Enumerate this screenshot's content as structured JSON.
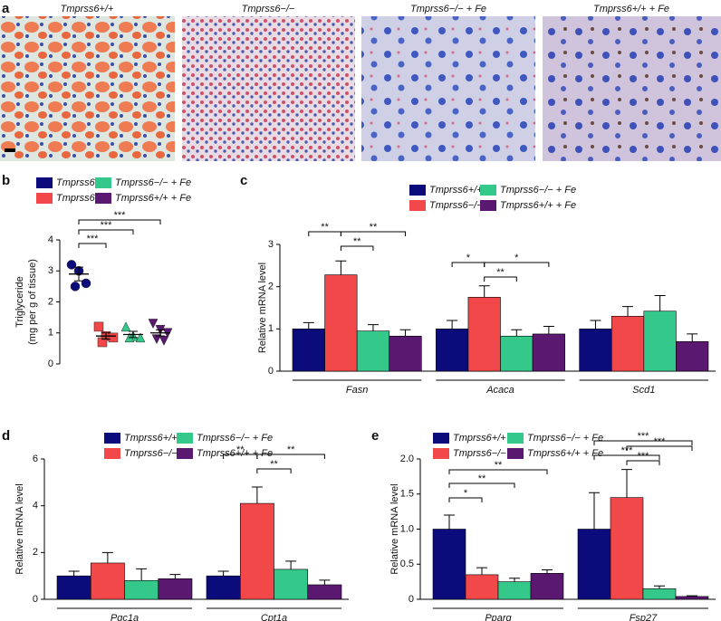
{
  "panel_a": {
    "letter": "a",
    "labels": [
      "Tmprss6+/+",
      "Tmprss6−/−",
      "Tmprss6−/− + Fe",
      "Tmprss6+/+ + Fe"
    ]
  },
  "chart_data": [
    {
      "type": "scatter",
      "letter": "b",
      "ylabel": [
        "Triglyceride",
        "(mg per g of tissue)"
      ],
      "ylim": [
        0,
        4
      ],
      "yticks": [
        0,
        1,
        2,
        3,
        4
      ],
      "series": [
        {
          "name": "Tmprss6+/+",
          "color": "#0b0b7c",
          "marker": "circle",
          "values": [
            3.2,
            3.0,
            2.6,
            2.5
          ],
          "mean": 2.9,
          "sem": 0.22
        },
        {
          "name": "Tmprss6−/−",
          "color": "#f2484a",
          "marker": "square",
          "values": [
            1.2,
            0.9,
            0.85,
            0.7
          ],
          "mean": 0.9,
          "sem": 0.1
        },
        {
          "name": "Tmprss6−/− + Fe",
          "color": "#34c98a",
          "marker": "triangle",
          "values": [
            1.2,
            0.9,
            0.85,
            0.85
          ],
          "mean": 0.95,
          "sem": 0.1
        },
        {
          "name": "Tmprss6+/+ + Fe",
          "color": "#5b1870",
          "marker": "triangle-down",
          "values": [
            1.3,
            1.1,
            1.0,
            0.8,
            0.75
          ],
          "mean": 1.0,
          "sem": 0.1
        }
      ],
      "annotations": [
        "***",
        "***",
        "***"
      ]
    },
    {
      "type": "bar",
      "letter": "c",
      "ylabel": "Relative mRNA level",
      "categories": [
        "Fasn",
        "Acaca",
        "Scd1"
      ],
      "ylim": [
        0,
        3
      ],
      "yticks": [
        0,
        1,
        2,
        3
      ],
      "series": [
        {
          "name": "Tmprss6+/+",
          "color": "#0b0b7c",
          "values": [
            1.0,
            1.0,
            1.0
          ],
          "errors": [
            0.15,
            0.2,
            0.2
          ]
        },
        {
          "name": "Tmprss6−/−",
          "color": "#f2484a",
          "values": [
            2.28,
            1.75,
            1.3
          ],
          "errors": [
            0.33,
            0.27,
            0.23
          ]
        },
        {
          "name": "Tmprss6−/− + Fe",
          "color": "#34c98a",
          "values": [
            0.95,
            0.83,
            1.42
          ],
          "errors": [
            0.15,
            0.15,
            0.37
          ]
        },
        {
          "name": "Tmprss6+/+ + Fe",
          "color": "#5b1870",
          "values": [
            0.83,
            0.88,
            0.7
          ],
          "errors": [
            0.15,
            0.18,
            0.18
          ]
        }
      ],
      "annotations": [
        "**",
        "**",
        "**",
        "*",
        "*",
        "**"
      ]
    },
    {
      "type": "bar",
      "letter": "d",
      "ylabel": "Relative mRNA level",
      "categories": [
        "Pgc1a",
        "Cpt1a"
      ],
      "ylim": [
        0,
        6
      ],
      "yticks": [
        0,
        2,
        4,
        6
      ],
      "series": [
        {
          "name": "Tmprss6+/+",
          "color": "#0b0b7c",
          "values": [
            1.0,
            1.0
          ],
          "errors": [
            0.2,
            0.2
          ]
        },
        {
          "name": "Tmprss6−/−",
          "color": "#f2484a",
          "values": [
            1.55,
            4.1
          ],
          "errors": [
            0.45,
            0.7
          ]
        },
        {
          "name": "Tmprss6−/− + Fe",
          "color": "#34c98a",
          "values": [
            0.8,
            1.28
          ],
          "errors": [
            0.5,
            0.35
          ]
        },
        {
          "name": "Tmprss6+/+ + Fe",
          "color": "#5b1870",
          "values": [
            0.88,
            0.62
          ],
          "errors": [
            0.18,
            0.2
          ]
        }
      ],
      "annotations": [
        "**",
        "**",
        "**"
      ]
    },
    {
      "type": "bar",
      "letter": "e",
      "ylabel": "Relative mRNA level",
      "categories": [
        "Pparg",
        "Fsp27"
      ],
      "ylim": [
        0,
        2
      ],
      "yticks": [
        0,
        0.5,
        {
          "value": 1,
          "label": "1.0"
        },
        1.5,
        {
          "value": 2,
          "label": "2.0"
        }
      ],
      "series": [
        {
          "name": "Tmprss6+/+",
          "color": "#0b0b7c",
          "values": [
            1.0,
            1.0
          ],
          "errors": [
            0.2,
            0.52
          ]
        },
        {
          "name": "Tmprss6−/−",
          "color": "#f2484a",
          "values": [
            0.35,
            1.45
          ],
          "errors": [
            0.1,
            0.4
          ]
        },
        {
          "name": "Tmprss6−/− + Fe",
          "color": "#34c98a",
          "values": [
            0.25,
            0.15
          ],
          "errors": [
            0.05,
            0.04
          ]
        },
        {
          "name": "Tmprss6+/+ + Fe",
          "color": "#5b1870",
          "values": [
            0.37,
            0.04
          ],
          "errors": [
            0.05,
            0.01
          ]
        }
      ],
      "annotations": [
        "*",
        "**",
        "**",
        "***",
        "***",
        "***",
        "***"
      ]
    }
  ]
}
